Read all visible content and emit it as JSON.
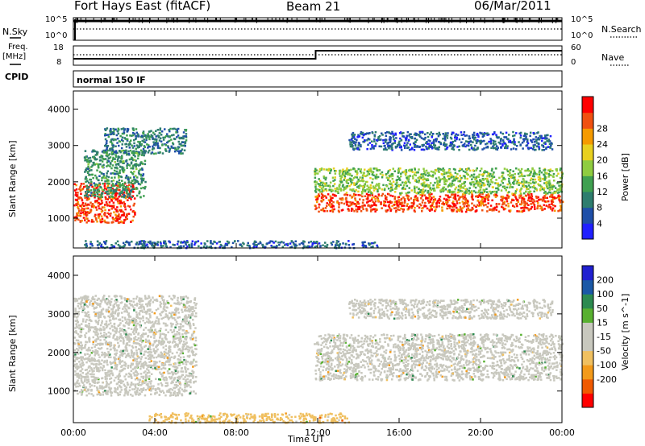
{
  "header": {
    "station": "Fort Hays East (fitACF)",
    "beam": "Beam 21",
    "date": "06/Mar/2011"
  },
  "status_panels": {
    "nsky_label": "N.Sky",
    "nsky_ticks": [
      "10^5",
      "10^0"
    ],
    "nsearch_label": "N.Search",
    "nsearch_ticks": [
      "10^5",
      "10^0"
    ],
    "freq_label": "Freq.",
    "freq_unit": "[MHz]",
    "freq_ticks": [
      "18",
      "8"
    ],
    "nave_label": "Nave",
    "nave_ticks": [
      "60",
      "0"
    ],
    "cpid_label": "CPID",
    "cpid_value": "normal 150 IF"
  },
  "colors": {
    "power_scale": [
      "#2020ff",
      "#1f4fa8",
      "#2e7d6e",
      "#3fa050",
      "#8fcc40",
      "#e8d020",
      "#f59a00",
      "#f05010",
      "#ff0000"
    ],
    "velocity_scale": [
      "#ff0000",
      "#f05a00",
      "#f39a1a",
      "#f0c060",
      "#c8c8be",
      "#c8c8be",
      "#58b030",
      "#2c8a50",
      "#1a58a6",
      "#2020d0"
    ]
  },
  "chart_data": [
    {
      "type": "heatmap",
      "title": "",
      "xlabel": "Time UT",
      "ylabel": "Slant Range [km]",
      "x_ticks": [
        "00:00",
        "04:00",
        "08:00",
        "12:00",
        "16:00",
        "20:00",
        "00:00"
      ],
      "y_ticks": [
        "1000",
        "2000",
        "3000",
        "4000"
      ],
      "ylim": [
        180,
        4500
      ],
      "colorbar_label": "Power [dB]",
      "colorbar_ticks": [
        "4",
        "8",
        "12",
        "16",
        "20",
        "24",
        "28"
      ],
      "colorbar_range": [
        0,
        30
      ],
      "scatter_bands": [
        {
          "t_start": 0.0,
          "t_end": 3.0,
          "range_min": 900,
          "range_max": 2000,
          "power": 26
        },
        {
          "t_start": 0.5,
          "t_end": 3.5,
          "range_min": 1600,
          "range_max": 2900,
          "power": 10
        },
        {
          "t_start": 1.5,
          "t_end": 5.5,
          "range_min": 2800,
          "range_max": 3500,
          "power": 8
        },
        {
          "t_start": 11.8,
          "t_end": 24.0,
          "range_min": 1200,
          "range_max": 1700,
          "power": 26
        },
        {
          "t_start": 11.8,
          "t_end": 24.0,
          "range_min": 1700,
          "range_max": 2400,
          "power": 14
        },
        {
          "t_start": 13.5,
          "t_end": 23.5,
          "range_min": 2900,
          "range_max": 3400,
          "power": 6
        },
        {
          "t_start": 0.5,
          "t_end": 15.0,
          "range_min": 200,
          "range_max": 400,
          "power": 6
        }
      ]
    },
    {
      "type": "heatmap",
      "title": "",
      "xlabel": "Time UT",
      "ylabel": "Slant Range [km]",
      "x_ticks": [
        "00:00",
        "04:00",
        "08:00",
        "12:00",
        "16:00",
        "20:00",
        "00:00"
      ],
      "y_ticks": [
        "1000",
        "2000",
        "3000",
        "4000"
      ],
      "ylim": [
        180,
        4500
      ],
      "colorbar_label": "Velocity [m s^-1]",
      "colorbar_ticks": [
        "200",
        "100",
        "50",
        "15",
        "-15",
        "-50",
        "-100",
        "-200"
      ],
      "colorbar_range": [
        -250,
        250
      ],
      "scatter_bands": [
        {
          "t_start": 0.0,
          "t_end": 6.0,
          "range_min": 900,
          "range_max": 3500,
          "velocity": 0
        },
        {
          "t_start": 11.8,
          "t_end": 24.0,
          "range_min": 1300,
          "range_max": 2500,
          "velocity": 0
        },
        {
          "t_start": 13.5,
          "t_end": 23.5,
          "range_min": 2900,
          "range_max": 3400,
          "velocity": 0
        },
        {
          "t_start": 3.5,
          "t_end": 13.5,
          "range_min": 200,
          "range_max": 450,
          "velocity": -60
        }
      ]
    }
  ]
}
